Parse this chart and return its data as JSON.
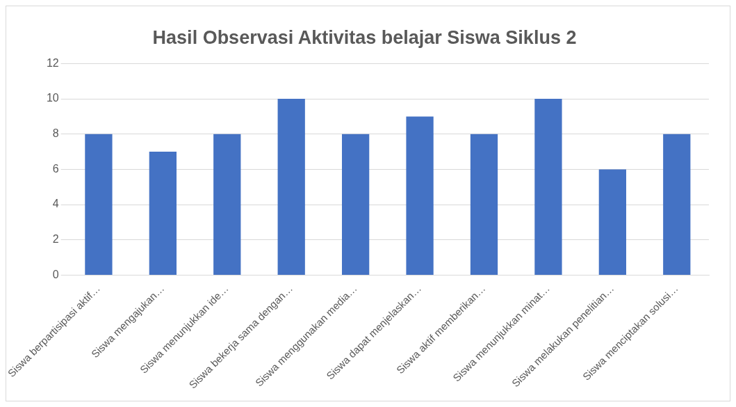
{
  "chart_data": {
    "type": "bar",
    "title": "Hasil Observasi Aktivitas belajar Siswa Siklus 2",
    "categories": [
      "Siswa berpartisipasi aktif…",
      "Siswa mengajukan…",
      "Siswa menunjukkan ide…",
      "Siswa bekerja sama dengan…",
      "Siswa menggunakan media…",
      "Siswa dapat menjelaskan…",
      "Siswa aktif memberikan…",
      "Siswa menunjukkan minat…",
      "Siswa melakukan penelitian…",
      "Siswa menciptakan solusi…"
    ],
    "values": [
      8,
      7,
      8,
      10,
      8,
      9,
      8,
      10,
      6,
      8
    ],
    "color": "#4472c4",
    "ylim": [
      0,
      12
    ],
    "yticks": [
      0,
      2,
      4,
      6,
      8,
      10,
      12
    ],
    "grid": "y"
  }
}
